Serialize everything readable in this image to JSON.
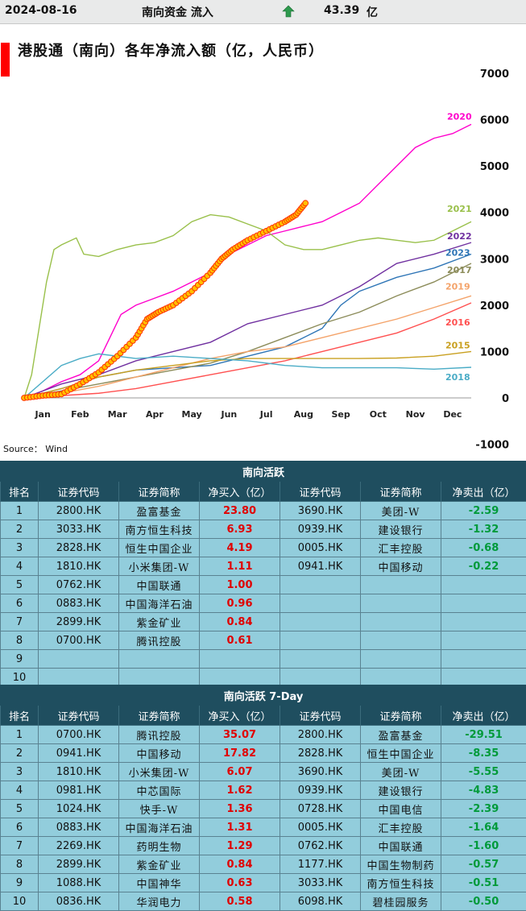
{
  "header": {
    "date": "2024-08-16",
    "label": "南向资金 流入",
    "value": "43.39",
    "unit": "亿"
  },
  "chart_data": {
    "type": "line",
    "title": "港股通（南向）各年净流入额（亿，人民币）",
    "source": "Source： Wind",
    "xlabel": "",
    "ylabel": "",
    "x_ticks": [
      "Jan",
      "Feb",
      "Mar",
      "Apr",
      "May",
      "Jun",
      "Jul",
      "Aug",
      "Sep",
      "Oct",
      "Nov",
      "Dec"
    ],
    "y_ticks": [
      7000,
      6000,
      5000,
      4000,
      3000,
      2000,
      1000,
      0,
      -1000
    ],
    "ylim": [
      -1000,
      7000
    ],
    "xlim": [
      0,
      12
    ],
    "series": [
      {
        "name": "2020",
        "color": "#ff00cc",
        "points": [
          [
            0,
            0
          ],
          [
            0.5,
            150
          ],
          [
            1,
            350
          ],
          [
            1.5,
            500
          ],
          [
            2,
            800
          ],
          [
            2.3,
            1300
          ],
          [
            2.6,
            1800
          ],
          [
            3,
            2000
          ],
          [
            3.5,
            2150
          ],
          [
            4,
            2300
          ],
          [
            4.5,
            2500
          ],
          [
            5,
            2700
          ],
          [
            5.5,
            3100
          ],
          [
            6,
            3300
          ],
          [
            6.5,
            3500
          ],
          [
            7,
            3600
          ],
          [
            7.5,
            3700
          ],
          [
            8,
            3800
          ],
          [
            8.5,
            4000
          ],
          [
            9,
            4200
          ],
          [
            9.5,
            4600
          ],
          [
            10,
            5000
          ],
          [
            10.5,
            5400
          ],
          [
            11,
            5600
          ],
          [
            11.5,
            5700
          ],
          [
            12,
            5900
          ]
        ]
      },
      {
        "name": "2021",
        "color": "#99c04a",
        "points": [
          [
            0,
            0
          ],
          [
            0.2,
            500
          ],
          [
            0.4,
            1500
          ],
          [
            0.6,
            2500
          ],
          [
            0.8,
            3200
          ],
          [
            1,
            3300
          ],
          [
            1.4,
            3450
          ],
          [
            1.6,
            3100
          ],
          [
            2,
            3050
          ],
          [
            2.5,
            3200
          ],
          [
            3,
            3300
          ],
          [
            3.5,
            3350
          ],
          [
            4,
            3500
          ],
          [
            4.5,
            3800
          ],
          [
            5,
            3950
          ],
          [
            5.5,
            3900
          ],
          [
            6,
            3750
          ],
          [
            6.5,
            3600
          ],
          [
            7,
            3300
          ],
          [
            7.5,
            3200
          ],
          [
            8,
            3200
          ],
          [
            8.5,
            3300
          ],
          [
            9,
            3400
          ],
          [
            9.5,
            3450
          ],
          [
            10,
            3400
          ],
          [
            10.5,
            3350
          ],
          [
            11,
            3400
          ],
          [
            11.5,
            3600
          ],
          [
            12,
            3800
          ]
        ]
      },
      {
        "name": "2022",
        "color": "#7030a0",
        "points": [
          [
            0,
            0
          ],
          [
            1,
            300
          ],
          [
            2,
            500
          ],
          [
            3,
            800
          ],
          [
            4,
            1000
          ],
          [
            5,
            1200
          ],
          [
            6,
            1600
          ],
          [
            7,
            1800
          ],
          [
            8,
            2000
          ],
          [
            9,
            2400
          ],
          [
            10,
            2900
          ],
          [
            11,
            3100
          ],
          [
            12,
            3350
          ]
        ]
      },
      {
        "name": "2023",
        "color": "#2e75b6",
        "points": [
          [
            0,
            0
          ],
          [
            1,
            200
          ],
          [
            2,
            450
          ],
          [
            3,
            600
          ],
          [
            4,
            650
          ],
          [
            5,
            700
          ],
          [
            6,
            900
          ],
          [
            7,
            1100
          ],
          [
            8,
            1500
          ],
          [
            8.5,
            2000
          ],
          [
            9,
            2300
          ],
          [
            10,
            2600
          ],
          [
            11,
            2800
          ],
          [
            12,
            3100
          ]
        ]
      },
      {
        "name": "2017",
        "color": "#8c8c5a",
        "points": [
          [
            0,
            0
          ],
          [
            1,
            150
          ],
          [
            2,
            300
          ],
          [
            3,
            450
          ],
          [
            4,
            600
          ],
          [
            5,
            750
          ],
          [
            6,
            1000
          ],
          [
            7,
            1300
          ],
          [
            8,
            1600
          ],
          [
            9,
            1850
          ],
          [
            10,
            2200
          ],
          [
            11,
            2500
          ],
          [
            12,
            2900
          ]
        ]
      },
      {
        "name": "2019",
        "color": "#f4a36a",
        "points": [
          [
            0,
            0
          ],
          [
            1,
            100
          ],
          [
            2,
            250
          ],
          [
            3,
            450
          ],
          [
            4,
            650
          ],
          [
            5,
            850
          ],
          [
            6,
            1000
          ],
          [
            7,
            1100
          ],
          [
            8,
            1300
          ],
          [
            9,
            1500
          ],
          [
            10,
            1700
          ],
          [
            11,
            1950
          ],
          [
            12,
            2200
          ]
        ]
      },
      {
        "name": "2016",
        "color": "#ff5050",
        "points": [
          [
            0,
            0
          ],
          [
            1,
            50
          ],
          [
            2,
            100
          ],
          [
            3,
            200
          ],
          [
            4,
            350
          ],
          [
            5,
            500
          ],
          [
            6,
            650
          ],
          [
            7,
            800
          ],
          [
            8,
            1000
          ],
          [
            9,
            1200
          ],
          [
            10,
            1400
          ],
          [
            11,
            1700
          ],
          [
            12,
            2050
          ]
        ]
      },
      {
        "name": "2015",
        "color": "#c9a020",
        "points": [
          [
            0,
            0
          ],
          [
            1,
            200
          ],
          [
            2,
            450
          ],
          [
            3,
            600
          ],
          [
            4,
            700
          ],
          [
            5,
            800
          ],
          [
            6,
            850
          ],
          [
            7,
            850
          ],
          [
            8,
            850
          ],
          [
            9,
            850
          ],
          [
            10,
            860
          ],
          [
            11,
            900
          ],
          [
            12,
            1000
          ]
        ]
      },
      {
        "name": "2018",
        "color": "#4aacc6",
        "points": [
          [
            0,
            0
          ],
          [
            1,
            700
          ],
          [
            1.5,
            850
          ],
          [
            2,
            950
          ],
          [
            3,
            850
          ],
          [
            4,
            900
          ],
          [
            5,
            850
          ],
          [
            6,
            800
          ],
          [
            7,
            700
          ],
          [
            8,
            650
          ],
          [
            9,
            650
          ],
          [
            10,
            650
          ],
          [
            11,
            620
          ],
          [
            12,
            660
          ]
        ]
      },
      {
        "name": "2024",
        "color": "#ff5a00",
        "marker": true,
        "points": [
          [
            0,
            0
          ],
          [
            0.5,
            50
          ],
          [
            1,
            80
          ],
          [
            1.5,
            300
          ],
          [
            2,
            550
          ],
          [
            2.5,
            900
          ],
          [
            3,
            1300
          ],
          [
            3.3,
            1700
          ],
          [
            3.6,
            1850
          ],
          [
            4,
            2000
          ],
          [
            4.5,
            2300
          ],
          [
            5,
            2700
          ],
          [
            5.3,
            3000
          ],
          [
            5.6,
            3200
          ],
          [
            6,
            3400
          ],
          [
            6.5,
            3600
          ],
          [
            7,
            3800
          ],
          [
            7.3,
            3950
          ],
          [
            7.55,
            4200
          ]
        ]
      }
    ]
  },
  "active": {
    "title": "南向活跃",
    "columns": [
      "排名",
      "证券代码",
      "证券简称",
      "净买入（亿）",
      "证券代码",
      "证券简称",
      "净卖出（亿）"
    ],
    "rows": [
      [
        "1",
        "2800.HK",
        "盈富基金",
        "23.80",
        "3690.HK",
        "美团-W",
        "-2.59"
      ],
      [
        "2",
        "3033.HK",
        "南方恒生科技",
        "6.93",
        "0939.HK",
        "建设银行",
        "-1.32"
      ],
      [
        "3",
        "2828.HK",
        "恒生中国企业",
        "4.19",
        "0005.HK",
        "汇丰控股",
        "-0.68"
      ],
      [
        "4",
        "1810.HK",
        "小米集团-W",
        "1.11",
        "0941.HK",
        "中国移动",
        "-0.22"
      ],
      [
        "5",
        "0762.HK",
        "中国联通",
        "1.00",
        "",
        "",
        ""
      ],
      [
        "6",
        "0883.HK",
        "中国海洋石油",
        "0.96",
        "",
        "",
        ""
      ],
      [
        "7",
        "2899.HK",
        "紫金矿业",
        "0.84",
        "",
        "",
        ""
      ],
      [
        "8",
        "0700.HK",
        "腾讯控股",
        "0.61",
        "",
        "",
        ""
      ],
      [
        "9",
        "",
        "",
        "",
        "",
        "",
        ""
      ],
      [
        "10",
        "",
        "",
        "",
        "",
        "",
        ""
      ]
    ]
  },
  "active7": {
    "title": "南向活跃 7-Day",
    "columns": [
      "排名",
      "证券代码",
      "证券简称",
      "净买入（亿）",
      "证券代码",
      "证券简称",
      "净卖出（亿）"
    ],
    "rows": [
      [
        "1",
        "0700.HK",
        "腾讯控股",
        "35.07",
        "2800.HK",
        "盈富基金",
        "-29.51"
      ],
      [
        "2",
        "0941.HK",
        "中国移动",
        "17.82",
        "2828.HK",
        "恒生中国企业",
        "-8.35"
      ],
      [
        "3",
        "1810.HK",
        "小米集团-W",
        "6.07",
        "3690.HK",
        "美团-W",
        "-5.55"
      ],
      [
        "4",
        "0981.HK",
        "中芯国际",
        "1.62",
        "0939.HK",
        "建设银行",
        "-4.83"
      ],
      [
        "5",
        "1024.HK",
        "快手-W",
        "1.36",
        "0728.HK",
        "中国电信",
        "-2.39"
      ],
      [
        "6",
        "0883.HK",
        "中国海洋石油",
        "1.31",
        "0005.HK",
        "汇丰控股",
        "-1.64"
      ],
      [
        "7",
        "2269.HK",
        "药明生物",
        "1.29",
        "0762.HK",
        "中国联通",
        "-1.60"
      ],
      [
        "8",
        "2899.HK",
        "紫金矿业",
        "0.84",
        "1177.HK",
        "中国生物制药",
        "-0.57"
      ],
      [
        "9",
        "1088.HK",
        "中国神华",
        "0.63",
        "3033.HK",
        "南方恒生科技",
        "-0.51"
      ],
      [
        "10",
        "0836.HK",
        "华润电力",
        "0.58",
        "6098.HK",
        "碧桂园服务",
        "-0.50"
      ]
    ]
  }
}
